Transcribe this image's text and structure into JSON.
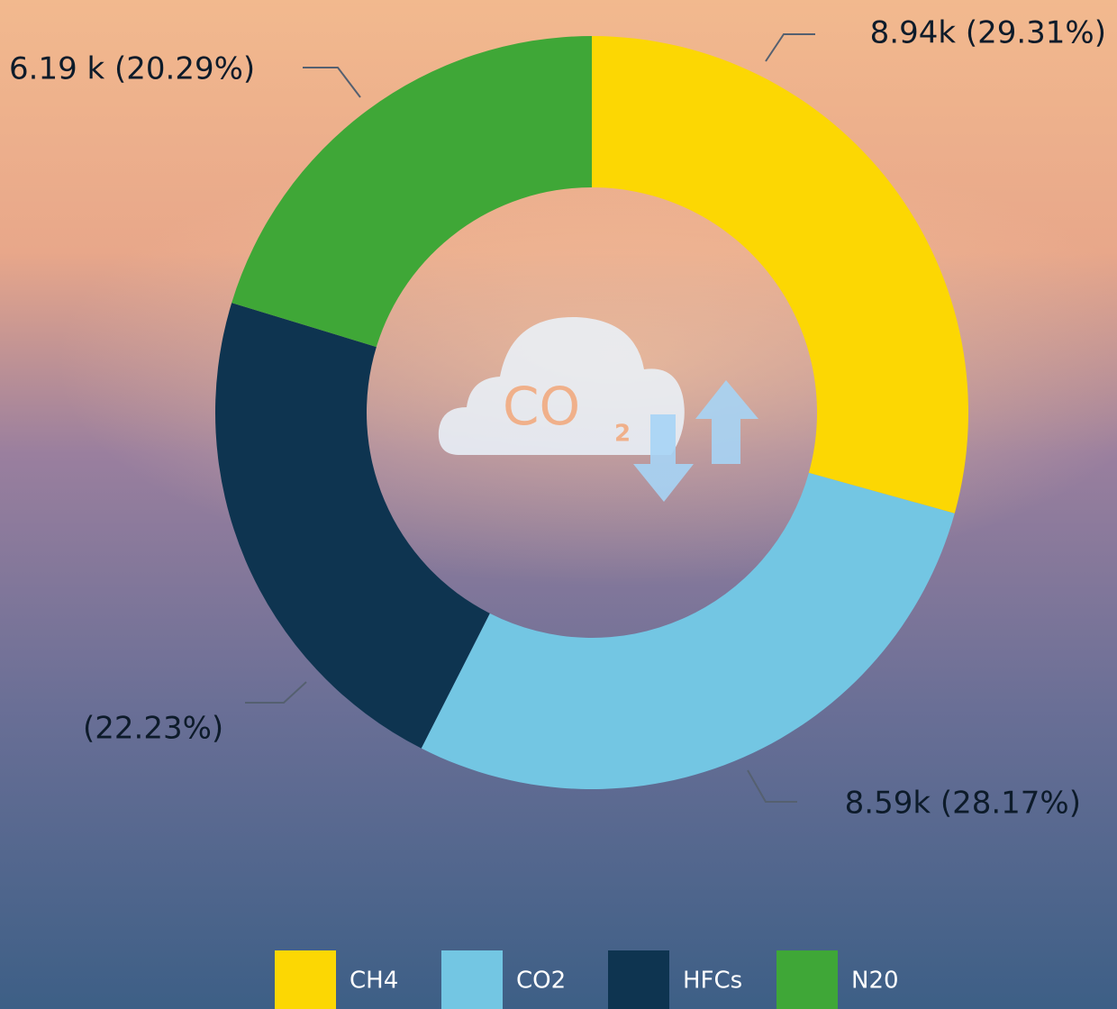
{
  "chart_data": {
    "type": "donut",
    "categories": [
      "CH4",
      "CO2",
      "HFCs",
      "N20"
    ],
    "values": [
      29.31,
      28.17,
      22.23,
      20.29
    ],
    "value_labels": [
      "8.94k (29.31%)",
      "8.59k (28.17%)",
      "(22.23%)",
      "6.19 k (20.29%)"
    ],
    "colors": [
      "#fcd703",
      "#73c6e3",
      "#0e3450",
      "#3fa737"
    ],
    "center_icon": {
      "text": "CO",
      "subscript": "2"
    }
  }
}
